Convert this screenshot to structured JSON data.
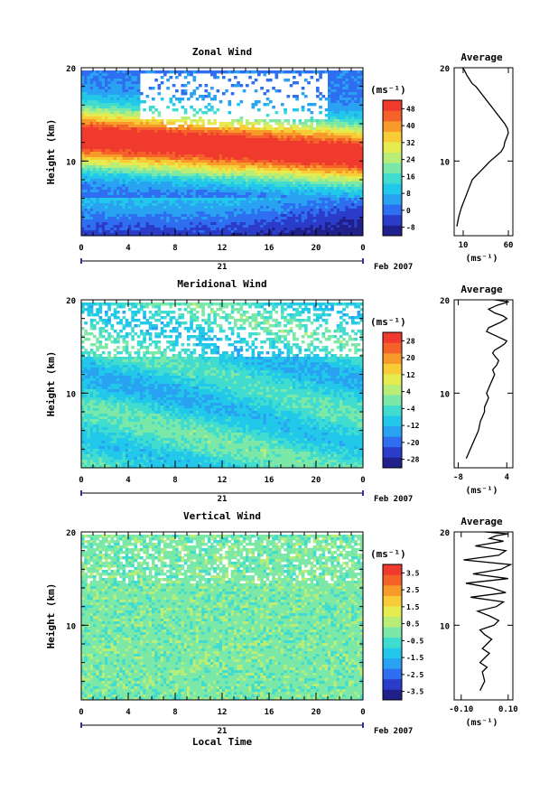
{
  "date_label": "Feb 2007",
  "xlabel_bottom": "Local Time",
  "unit_label": "(ms⁻¹)",
  "colormap": [
    "#20208a",
    "#2a3cc8",
    "#2f6ef0",
    "#2aa2f2",
    "#22c8ea",
    "#40dcd0",
    "#7ce8a8",
    "#b8ee78",
    "#e6ec50",
    "#f8cc36",
    "#f89a2a",
    "#f4622a",
    "#f03a2e"
  ],
  "chart_data": [
    {
      "type": "heatmap",
      "title": "Zonal Wind",
      "ylabel": "Height (km)",
      "x_ticks": [
        "0",
        "4",
        "8",
        "12",
        "16",
        "20",
        "0"
      ],
      "x_range": [
        0,
        24
      ],
      "y_ticks": [
        "10",
        "20"
      ],
      "y_range": [
        2,
        20
      ],
      "day_label": "21",
      "colorbar": {
        "ticks": [
          "48",
          "40",
          "32",
          "24",
          "16",
          "8",
          "0",
          "-8"
        ],
        "range": [
          -12,
          52
        ]
      },
      "profile": {
        "title": "Average",
        "x_ticks": [
          "10",
          "60"
        ],
        "x_range": [
          0,
          65
        ],
        "y_ticks": [
          "10",
          "20"
        ],
        "xlabel": "(ms⁻¹)",
        "x": [
          3,
          5,
          8,
          12,
          16,
          20,
          25,
          30,
          35,
          40,
          46,
          52,
          55,
          56,
          58,
          60,
          59,
          56,
          52,
          48,
          44,
          40,
          36,
          32,
          28,
          24,
          20,
          18,
          16,
          14,
          13,
          12,
          11,
          10,
          9
        ],
        "y": [
          3,
          4,
          5,
          6,
          7,
          8,
          8.5,
          9,
          9.5,
          10,
          10.5,
          11,
          11.5,
          12,
          12.5,
          13,
          13.5,
          14,
          14.5,
          15,
          15.5,
          16,
          16.5,
          17,
          17.5,
          18,
          18.3,
          18.6,
          18.9,
          19.2,
          19.4,
          19.6,
          19.8,
          19.9,
          20
        ]
      }
    },
    {
      "type": "heatmap",
      "title": "Meridional Wind",
      "ylabel": "Height (km)",
      "x_ticks": [
        "0",
        "4",
        "8",
        "12",
        "16",
        "20",
        "0"
      ],
      "x_range": [
        0,
        24
      ],
      "y_ticks": [
        "10",
        "20"
      ],
      "y_range": [
        2,
        20
      ],
      "day_label": "21",
      "colorbar": {
        "ticks": [
          "28",
          "20",
          "12",
          "4",
          "-4",
          "-12",
          "-20",
          "-28"
        ],
        "range": [
          -32,
          32
        ]
      },
      "profile": {
        "title": "Average",
        "x_ticks": [
          "-8",
          "4"
        ],
        "x_range": [
          -9,
          5.5
        ],
        "y_ticks": [
          "10",
          "20"
        ],
        "xlabel": "(ms⁻¹)",
        "x": [
          -6,
          -5,
          -4,
          -3,
          -2.5,
          -2,
          -1.5,
          -1.5,
          -1,
          -0.5,
          -1,
          -0.5,
          0,
          0.5,
          1,
          0.5,
          1.5,
          2,
          1,
          0.5,
          1,
          2.5,
          3.5,
          4,
          2,
          0.5,
          -1,
          -0.5,
          1,
          2.5,
          4,
          3,
          1,
          -0.5,
          0.5,
          1.5,
          3,
          4.5,
          2.5,
          1
        ],
        "y": [
          3,
          4,
          5,
          6,
          7,
          7.5,
          8,
          8.5,
          9,
          9.5,
          10,
          10.5,
          11,
          11.5,
          12,
          12.5,
          13,
          13.5,
          14,
          14.3,
          14.6,
          15,
          15.3,
          15.6,
          16,
          16.3,
          16.6,
          17,
          17.3,
          17.6,
          18,
          18.3,
          18.6,
          19,
          19.2,
          19.4,
          19.6,
          19.8,
          19.9,
          20
        ]
      }
    },
    {
      "type": "heatmap",
      "title": "Vertical Wind",
      "ylabel": "Height (km)",
      "x_ticks": [
        "0",
        "4",
        "8",
        "12",
        "16",
        "20",
        "0"
      ],
      "x_range": [
        0,
        24
      ],
      "y_ticks": [
        "10",
        "20"
      ],
      "y_range": [
        2,
        20
      ],
      "day_label": "21",
      "xlabel": "Local Time",
      "colorbar": {
        "ticks": [
          "3.5",
          "2.5",
          "1.5",
          "0.5",
          "-0.5",
          "-1.5",
          "-2.5",
          "-3.5"
        ],
        "range": [
          -4,
          4
        ]
      },
      "profile": {
        "title": "Average",
        "x_ticks": [
          "-0.10",
          "0.10"
        ],
        "x_range": [
          -0.13,
          0.12
        ],
        "y_ticks": [
          "10",
          "20"
        ],
        "xlabel": "(ms⁻¹)",
        "x": [
          -0.02,
          0.0,
          -0.01,
          0.01,
          -0.02,
          0.0,
          0.02,
          -0.01,
          0.01,
          0.03,
          0.0,
          -0.02,
          0.04,
          0.06,
          0.02,
          -0.03,
          0.05,
          0.08,
          -0.06,
          0.09,
          0.03,
          -0.08,
          0.1,
          -0.05,
          0.07,
          0.11,
          -0.09,
          0.06,
          0.09,
          -0.04,
          0.08,
          0.02,
          0.05,
          0.1,
          0.0
        ],
        "y": [
          3,
          4,
          5,
          5.5,
          6,
          6.5,
          7,
          7.5,
          8,
          8.5,
          9,
          9.5,
          10,
          10.5,
          11,
          11.5,
          12,
          12.5,
          13,
          13.5,
          14,
          14.5,
          15,
          15.5,
          16,
          16.5,
          17,
          17.5,
          18,
          18.5,
          19,
          19.3,
          19.6,
          19.8,
          20
        ]
      }
    }
  ]
}
